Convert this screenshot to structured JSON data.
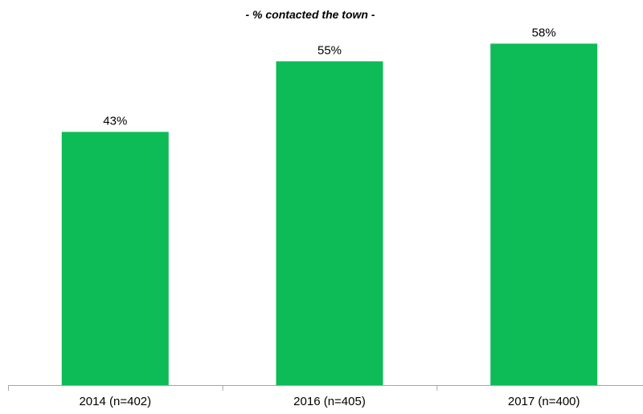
{
  "chart_data": {
    "type": "bar",
    "title": "- % contacted the town -",
    "categories": [
      "2014 (n=402)",
      "2016 (n=405)",
      "2017 (n=400)"
    ],
    "values": [
      43,
      55,
      58
    ],
    "data_labels": [
      "43%",
      "55%",
      "58%"
    ],
    "ylim": [
      0,
      62
    ],
    "xlabel": "",
    "ylabel": "",
    "grid": false,
    "legend": "none",
    "bar_color": "#0dbb57",
    "axis_color": "#a6a6a6"
  }
}
